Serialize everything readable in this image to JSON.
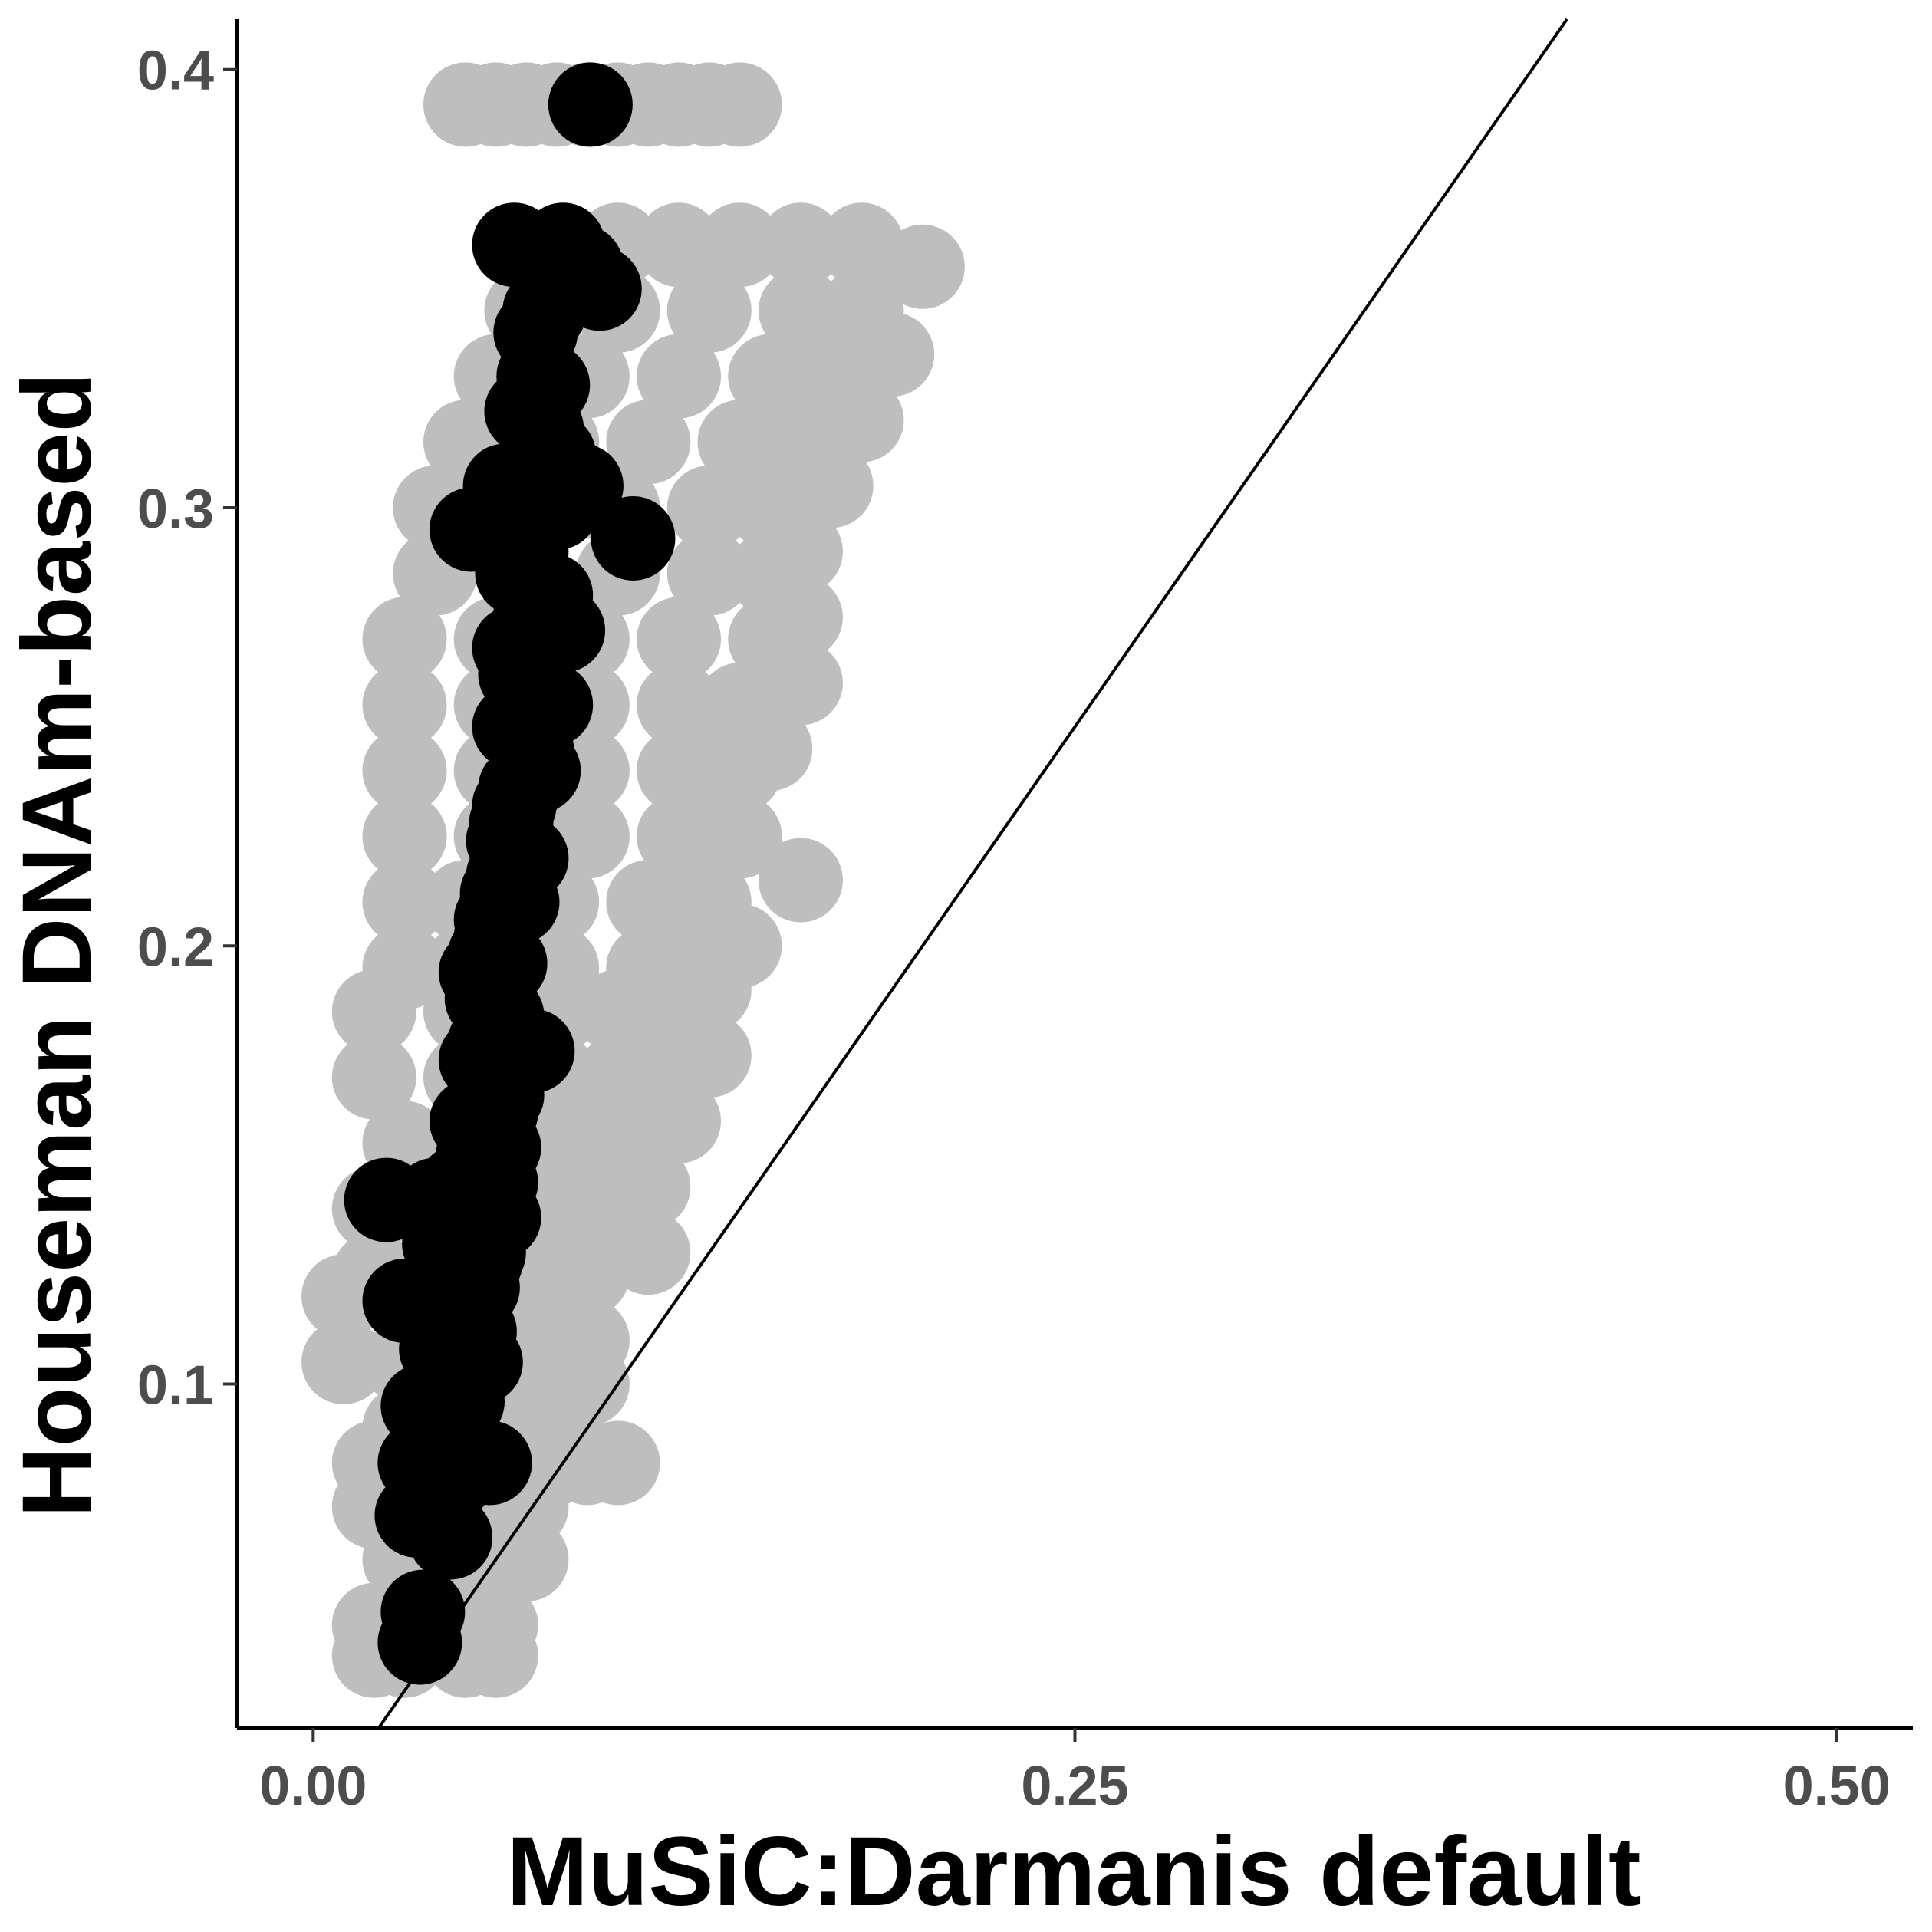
{
  "chart_data": {
    "type": "scatter",
    "title": "",
    "xlabel": "MuSiC:Darmanis default",
    "ylabel": "Houseman DNAm-based",
    "xlim": [
      -0.025,
      0.525
    ],
    "ylim": [
      0.0215,
      0.4115
    ],
    "x_ticks": [
      0.0,
      0.25,
      0.5
    ],
    "x_tick_labels": [
      "0.00",
      "0.25",
      "0.50"
    ],
    "y_ticks": [
      0.1,
      0.2,
      0.3,
      0.4
    ],
    "y_tick_labels": [
      "0.1",
      "0.2",
      "0.3",
      "0.4"
    ],
    "grid": false,
    "legend": "none",
    "reference_line": {
      "slope": 1,
      "intercept": 0,
      "color": "#000000"
    },
    "series": [
      {
        "color": "#bebebe",
        "x": [
          0.05,
          0.06,
          0.07,
          0.08,
          0.09,
          0.1,
          0.11,
          0.12,
          0.13,
          0.14,
          0.1,
          0.12,
          0.14,
          0.16,
          0.18,
          0.2,
          0.07,
          0.1,
          0.13,
          0.16,
          0.18,
          0.19,
          0.06,
          0.09,
          0.12,
          0.15,
          0.17,
          0.18,
          0.05,
          0.08,
          0.11,
          0.14,
          0.16,
          0.17,
          0.04,
          0.07,
          0.1,
          0.13,
          0.15,
          0.16,
          0.04,
          0.07,
          0.1,
          0.13,
          0.15,
          0.16,
          0.03,
          0.06,
          0.09,
          0.12,
          0.15,
          0.16,
          0.03,
          0.06,
          0.09,
          0.12,
          0.14,
          0.15,
          0.03,
          0.06,
          0.09,
          0.12,
          0.13,
          0.14,
          0.03,
          0.06,
          0.09,
          0.12,
          0.14,
          0.16,
          0.03,
          0.05,
          0.08,
          0.11,
          0.13,
          0.14,
          0.03,
          0.05,
          0.08,
          0.11,
          0.12,
          0.13,
          0.02,
          0.05,
          0.08,
          0.1,
          0.12,
          0.13,
          0.02,
          0.05,
          0.08,
          0.1,
          0.11,
          0.12,
          0.03,
          0.05,
          0.08,
          0.09,
          0.1,
          0.11,
          0.02,
          0.04,
          0.06,
          0.08,
          0.1,
          0.11,
          0.02,
          0.04,
          0.06,
          0.08,
          0.09,
          0.01,
          0.03,
          0.05,
          0.07,
          0.09,
          0.01,
          0.03,
          0.05,
          0.07,
          0.09,
          0.03,
          0.05,
          0.07,
          0.08,
          0.02,
          0.04,
          0.06,
          0.08,
          0.09,
          0.1,
          0.02,
          0.04,
          0.06,
          0.07,
          0.03,
          0.05,
          0.06,
          0.07,
          0.02,
          0.04,
          0.06,
          0.02,
          0.03,
          0.05,
          0.06
        ],
        "y": [
          0.392,
          0.392,
          0.392,
          0.392,
          0.392,
          0.392,
          0.392,
          0.392,
          0.392,
          0.392,
          0.36,
          0.36,
          0.36,
          0.36,
          0.36,
          0.355,
          0.345,
          0.345,
          0.345,
          0.345,
          0.345,
          0.335,
          0.33,
          0.33,
          0.33,
          0.33,
          0.33,
          0.32,
          0.315,
          0.315,
          0.315,
          0.315,
          0.315,
          0.305,
          0.3,
          0.3,
          0.3,
          0.3,
          0.3,
          0.29,
          0.285,
          0.285,
          0.285,
          0.285,
          0.285,
          0.275,
          0.27,
          0.27,
          0.27,
          0.27,
          0.27,
          0.26,
          0.255,
          0.255,
          0.255,
          0.255,
          0.255,
          0.245,
          0.24,
          0.24,
          0.24,
          0.24,
          0.24,
          0.24,
          0.225,
          0.225,
          0.225,
          0.225,
          0.225,
          0.215,
          0.21,
          0.21,
          0.21,
          0.21,
          0.21,
          0.2,
          0.195,
          0.195,
          0.195,
          0.195,
          0.195,
          0.19,
          0.185,
          0.185,
          0.185,
          0.185,
          0.185,
          0.175,
          0.17,
          0.17,
          0.17,
          0.17,
          0.17,
          0.16,
          0.155,
          0.155,
          0.155,
          0.155,
          0.155,
          0.145,
          0.14,
          0.14,
          0.14,
          0.14,
          0.14,
          0.13,
          0.125,
          0.125,
          0.125,
          0.125,
          0.125,
          0.12,
          0.12,
          0.12,
          0.11,
          0.11,
          0.105,
          0.105,
          0.105,
          0.1,
          0.1,
          0.09,
          0.09,
          0.09,
          0.09,
          0.082,
          0.082,
          0.082,
          0.082,
          0.082,
          0.082,
          0.072,
          0.072,
          0.072,
          0.072,
          0.06,
          0.06,
          0.06,
          0.06,
          0.045,
          0.045,
          0.045,
          0.038,
          0.038,
          0.038,
          0.038
        ]
      },
      {
        "color": "#000000",
        "x": [
          0.091,
          0.066,
          0.082,
          0.088,
          0.094,
          0.076,
          0.073,
          0.074,
          0.077,
          0.07,
          0.075,
          0.079,
          0.088,
          0.063,
          0.072,
          0.08,
          0.052,
          0.062,
          0.07,
          0.105,
          0.078,
          0.067,
          0.073,
          0.082,
          0.074,
          0.066,
          0.068,
          0.071,
          0.078,
          0.066,
          0.069,
          0.072,
          0.074,
          0.068,
          0.066,
          0.065,
          0.064,
          0.07,
          0.064,
          0.062,
          0.067,
          0.06,
          0.06,
          0.058,
          0.063,
          0.055,
          0.06,
          0.057,
          0.062,
          0.072,
          0.058,
          0.055,
          0.058,
          0.062,
          0.06,
          0.052,
          0.057,
          0.061,
          0.054,
          0.058,
          0.06,
          0.048,
          0.058,
          0.061,
          0.04,
          0.05,
          0.056,
          0.056,
          0.043,
          0.055,
          0.054,
          0.045,
          0.05,
          0.053,
          0.024,
          0.03,
          0.042,
          0.055,
          0.043,
          0.049,
          0.036,
          0.048,
          0.047,
          0.058,
          0.035,
          0.045,
          0.034,
          0.04,
          0.045,
          0.036,
          0.035
        ],
        "y": [
          0.392,
          0.36,
          0.36,
          0.355,
          0.35,
          0.345,
          0.34,
          0.33,
          0.328,
          0.322,
          0.318,
          0.312,
          0.305,
          0.305,
          0.3,
          0.3,
          0.295,
          0.293,
          0.29,
          0.293,
          0.28,
          0.285,
          0.276,
          0.272,
          0.27,
          0.268,
          0.262,
          0.258,
          0.255,
          0.25,
          0.248,
          0.244,
          0.24,
          0.236,
          0.232,
          0.228,
          0.224,
          0.22,
          0.216,
          0.212,
          0.21,
          0.206,
          0.202,
          0.198,
          0.196,
          0.194,
          0.192,
          0.188,
          0.184,
          0.176,
          0.178,
          0.174,
          0.17,
          0.166,
          0.162,
          0.16,
          0.158,
          0.154,
          0.152,
          0.148,
          0.146,
          0.145,
          0.142,
          0.138,
          0.142,
          0.136,
          0.134,
          0.13,
          0.132,
          0.128,
          0.122,
          0.119,
          0.118,
          0.112,
          0.142,
          0.119,
          0.108,
          0.105,
          0.1,
          0.096,
          0.095,
          0.088,
          0.085,
          0.082,
          0.082,
          0.078,
          0.07,
          0.072,
          0.065,
          0.048,
          0.041
        ]
      }
    ]
  }
}
